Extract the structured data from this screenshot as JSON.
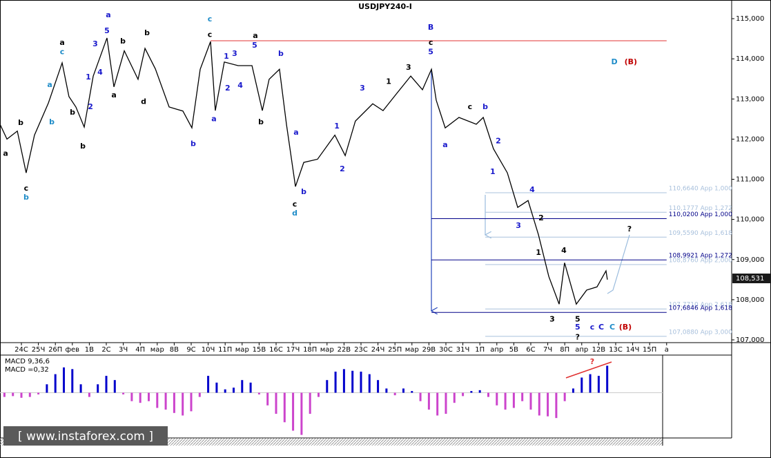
{
  "chart_data": {
    "type": "line",
    "title": "USDJPY240-I",
    "watermark": "[ www.instaforex.com ]",
    "categories": [
      "24С",
      "25Ч",
      "26П",
      "фев",
      "1В",
      "2С",
      "3Ч",
      "4П",
      "мар",
      "8В",
      "9С",
      "10Ч",
      "11П",
      "мар",
      "15В",
      "16С",
      "17Ч",
      "18П",
      "мар",
      "22В",
      "23С",
      "24Ч",
      "25П",
      "мар",
      "29В",
      "30С",
      "31Ч",
      "1П",
      "апр",
      "5В",
      "6С",
      "7Ч",
      "8П",
      "апр",
      "12В",
      "13С",
      "14Ч",
      "15П",
      "а"
    ],
    "xlim": [
      -1.26,
      41.83
    ],
    "ylim": [
      107.0,
      115.465
    ],
    "yticks": [
      {
        "value": 115,
        "label": "115,000"
      },
      {
        "value": 114,
        "label": "114,000"
      },
      {
        "value": 113,
        "label": "113,000"
      },
      {
        "value": 112,
        "label": "112,000"
      },
      {
        "value": 111,
        "label": "111,000"
      },
      {
        "value": 110,
        "label": "110,000"
      },
      {
        "value": 109,
        "label": "109,000"
      },
      {
        "value": 108,
        "label": "108,000"
      },
      {
        "value": 107,
        "label": "107,000"
      }
    ],
    "series": [
      {
        "name": "USDJPY240-I",
        "color": "#000000",
        "x": [
          -1.26,
          -0.85,
          -0.24,
          0.28,
          0.77,
          1.59,
          2.4,
          2.8,
          3.21,
          3.7,
          4.23,
          5.04,
          5.45,
          6.06,
          6.87,
          7.28,
          7.89,
          8.7,
          9.51,
          10.04,
          10.53,
          11.14,
          11.42,
          11.95,
          12.76,
          13.58,
          14.19,
          14.59,
          15.2,
          15.61,
          16.14,
          16.63,
          17.44,
          18.46,
          19.07,
          19.67,
          20.69,
          21.3,
          22.11,
          22.93,
          23.62,
          24.15,
          24.43,
          24.96,
          25.77,
          26.79,
          27.2,
          27.8,
          28.62,
          29.23,
          29.84,
          30.45,
          31.06,
          31.67,
          31.99,
          32.68,
          33.29,
          33.9,
          34.43,
          34.51
        ],
        "values": [
          112.37,
          112.0,
          112.2,
          111.16,
          112.1,
          112.9,
          113.9,
          113.06,
          112.8,
          112.3,
          113.57,
          114.52,
          113.3,
          114.2,
          113.49,
          114.26,
          113.75,
          112.8,
          112.7,
          112.28,
          113.74,
          114.43,
          112.71,
          113.92,
          113.83,
          113.83,
          112.71,
          113.49,
          113.74,
          112.37,
          110.82,
          111.42,
          111.5,
          112.1,
          111.59,
          112.45,
          112.88,
          112.71,
          113.14,
          113.57,
          113.23,
          113.74,
          112.97,
          112.28,
          112.54,
          112.37,
          112.54,
          111.76,
          111.16,
          110.3,
          110.47,
          109.62,
          108.58,
          107.89,
          108.92,
          107.89,
          108.24,
          108.32,
          108.72,
          108.5
        ]
      }
    ],
    "last_price": {
      "value": 108.531,
      "label": "108,531"
    },
    "levels": [
      {
        "value": 114.45,
        "color": "#e03030",
        "x_start": 11.14,
        "x_end": 38.0
      },
      {
        "value": 110.664,
        "label": "110,6640 App 1,000",
        "color": "#a8c0dc",
        "x_start": 27.32,
        "x_end": 38.0
      },
      {
        "value": 110.1777,
        "label": "110,1777 App 1,272",
        "color": "#a8c0dc",
        "x_start": 27.32,
        "x_end": 38.0
      },
      {
        "value": 110.02,
        "label": "110,0200 App 1,000",
        "color": "#000088",
        "x_start": 24.15,
        "x_end": 38.0
      },
      {
        "value": 109.559,
        "label": "109,5590 App 1,618",
        "color": "#a8c0dc",
        "x_start": 27.32,
        "x_end": 38.0
      },
      {
        "value": 108.9921,
        "label": "108,9921 App 1,272",
        "color": "#000088",
        "x_start": 24.15,
        "x_end": 38.0
      },
      {
        "value": 108.876,
        "label": "108,8760 App 2,000",
        "color": "#a8c0dc",
        "x_start": 27.32,
        "x_end": 38.0
      },
      {
        "value": 107.771,
        "label": "107,7710 App 2,618",
        "color": "#a8c0dc",
        "x_start": 27.32,
        "x_end": 38.0
      },
      {
        "value": 107.6846,
        "label": "107,6846 App 1,618",
        "color": "#000088",
        "x_start": 24.15,
        "x_end": 38.0
      },
      {
        "value": 107.088,
        "label": "107,0880 App 3,000",
        "color": "#a8c0dc",
        "x_start": 27.32,
        "x_end": 38.0
      }
    ],
    "annotations": [
      {
        "text": "a",
        "x": -0.93,
        "y": 111.64,
        "color": "#000000"
      },
      {
        "text": "b",
        "x": -0.04,
        "y": 112.4,
        "color": "#000000"
      },
      {
        "text": "c",
        "x": 0.28,
        "y": 110.77,
        "color": "#000000"
      },
      {
        "text": "b",
        "x": 0.28,
        "y": 110.54,
        "color": "#1e8cc8"
      },
      {
        "text": "a",
        "x": 2.4,
        "y": 114.4,
        "color": "#000000"
      },
      {
        "text": "c",
        "x": 2.4,
        "y": 114.17,
        "color": "#1e8cc8"
      },
      {
        "text": "a",
        "x": 1.67,
        "y": 113.35,
        "color": "#1e8cc8"
      },
      {
        "text": "b",
        "x": 1.79,
        "y": 112.42,
        "color": "#1e8cc8"
      },
      {
        "text": "b",
        "x": 3.01,
        "y": 112.66,
        "color": "#000000"
      },
      {
        "text": "b",
        "x": 3.62,
        "y": 111.82,
        "color": "#000000"
      },
      {
        "text": "1",
        "x": 3.94,
        "y": 113.54,
        "color": "#1a1acc"
      },
      {
        "text": "2",
        "x": 4.07,
        "y": 112.8,
        "color": "#1a1acc"
      },
      {
        "text": "3",
        "x": 4.35,
        "y": 114.36,
        "color": "#1a1acc"
      },
      {
        "text": "4",
        "x": 4.63,
        "y": 113.66,
        "color": "#1a1acc"
      },
      {
        "text": "5",
        "x": 5.04,
        "y": 114.69,
        "color": "#1a1acc"
      },
      {
        "text": "a",
        "x": 5.12,
        "y": 115.09,
        "color": "#1a1acc"
      },
      {
        "text": "a",
        "x": 5.45,
        "y": 113.09,
        "color": "#000000"
      },
      {
        "text": "b",
        "x": 5.98,
        "y": 114.43,
        "color": "#000000"
      },
      {
        "text": "b",
        "x": 7.4,
        "y": 114.64,
        "color": "#000000"
      },
      {
        "text": "d",
        "x": 7.2,
        "y": 112.93,
        "color": "#000000"
      },
      {
        "text": "b",
        "x": 10.12,
        "y": 111.88,
        "color": "#1a1acc"
      },
      {
        "text": "c",
        "x": 11.1,
        "y": 114.98,
        "color": "#1e8cc8"
      },
      {
        "text": "c",
        "x": 11.1,
        "y": 114.6,
        "color": "#000000"
      },
      {
        "text": "a",
        "x": 11.34,
        "y": 112.5,
        "color": "#1a1acc"
      },
      {
        "text": "1",
        "x": 12.07,
        "y": 114.05,
        "color": "#1a1acc"
      },
      {
        "text": "2",
        "x": 12.15,
        "y": 113.26,
        "color": "#1a1acc"
      },
      {
        "text": "3",
        "x": 12.56,
        "y": 114.12,
        "color": "#1a1acc"
      },
      {
        "text": "4",
        "x": 12.89,
        "y": 113.33,
        "color": "#1a1acc"
      },
      {
        "text": "5",
        "x": 13.74,
        "y": 114.33,
        "color": "#1a1acc"
      },
      {
        "text": "a",
        "x": 13.78,
        "y": 114.57,
        "color": "#000000"
      },
      {
        "text": "b",
        "x": 14.11,
        "y": 112.42,
        "color": "#000000"
      },
      {
        "text": "b",
        "x": 15.28,
        "y": 114.12,
        "color": "#1a1acc"
      },
      {
        "text": "c",
        "x": 16.1,
        "y": 110.37,
        "color": "#000000"
      },
      {
        "text": "d",
        "x": 16.1,
        "y": 110.15,
        "color": "#1e8cc8"
      },
      {
        "text": "b",
        "x": 16.63,
        "y": 110.68,
        "color": "#1a1acc"
      },
      {
        "text": "a",
        "x": 16.18,
        "y": 112.16,
        "color": "#1a1acc"
      },
      {
        "text": "1",
        "x": 18.58,
        "y": 112.32,
        "color": "#1a1acc"
      },
      {
        "text": "2",
        "x": 18.9,
        "y": 111.25,
        "color": "#1a1acc"
      },
      {
        "text": "3",
        "x": 20.08,
        "y": 113.26,
        "color": "#1a1acc"
      },
      {
        "text": "1",
        "x": 21.63,
        "y": 113.43,
        "color": "#000000"
      },
      {
        "text": "3",
        "x": 22.8,
        "y": 113.78,
        "color": "#000000"
      },
      {
        "text": "B",
        "x": 24.11,
        "y": 114.78,
        "color": "#1a1acc"
      },
      {
        "text": "c",
        "x": 24.11,
        "y": 114.4,
        "color": "#000000"
      },
      {
        "text": "5",
        "x": 24.11,
        "y": 114.17,
        "color": "#1a1acc"
      },
      {
        "text": "a",
        "x": 24.96,
        "y": 111.85,
        "color": "#1a1acc"
      },
      {
        "text": "c",
        "x": 26.42,
        "y": 112.8,
        "color": "#000000"
      },
      {
        "text": "b",
        "x": 27.32,
        "y": 112.8,
        "color": "#1a1acc"
      },
      {
        "text": "1",
        "x": 27.76,
        "y": 111.18,
        "color": "#1a1acc"
      },
      {
        "text": "2",
        "x": 28.09,
        "y": 111.95,
        "color": "#1a1acc"
      },
      {
        "text": "3",
        "x": 29.27,
        "y": 109.84,
        "color": "#1a1acc"
      },
      {
        "text": "4",
        "x": 30.08,
        "y": 110.73,
        "color": "#1a1acc"
      },
      {
        "text": "1",
        "x": 30.45,
        "y": 109.17,
        "color": "#000000"
      },
      {
        "text": "2",
        "x": 30.61,
        "y": 110.03,
        "color": "#000000"
      },
      {
        "text": "3",
        "x": 31.26,
        "y": 107.51,
        "color": "#000000"
      },
      {
        "text": "4",
        "x": 31.95,
        "y": 109.22,
        "color": "#000000"
      },
      {
        "text": "5",
        "x": 32.76,
        "y": 107.31,
        "color": "#1a1acc"
      },
      {
        "text": "5",
        "x": 32.76,
        "y": 107.51,
        "color": "#000000"
      },
      {
        "text": "?",
        "x": 32.76,
        "y": 107.06,
        "color": "#000000"
      },
      {
        "text": "c",
        "x": 33.62,
        "y": 107.31,
        "color": "#1a1acc"
      },
      {
        "text": "C",
        "x": 34.15,
        "y": 107.31,
        "color": "#1a1acc"
      },
      {
        "text": "C",
        "x": 34.8,
        "y": 107.31,
        "color": "#1e8cc8"
      },
      {
        "text": "(B)",
        "x": 35.57,
        "y": 107.31,
        "color": "#c00000"
      },
      {
        "text": "D",
        "x": 34.92,
        "y": 113.92,
        "color": "#1e8cc8"
      },
      {
        "text": "(B)",
        "x": 35.89,
        "y": 113.92,
        "color": "#c00000"
      },
      {
        "text": "?",
        "x": 35.81,
        "y": 109.75,
        "color": "#000000"
      }
    ],
    "macd": {
      "title": "MACD 9,36,6",
      "current_label": "MACD =0,32",
      "ylim": [
        -0.52,
        0.43
      ],
      "positive_color": "#0000cc",
      "negative_color": "#cc44cc",
      "x": [
        -1,
        -0.5,
        0,
        0.5,
        1,
        1.5,
        2,
        2.5,
        3,
        3.5,
        4,
        4.5,
        5,
        5.5,
        6,
        6.5,
        7,
        7.5,
        8,
        8.5,
        9,
        9.5,
        10,
        10.5,
        11,
        11.5,
        12,
        12.5,
        13,
        13.5,
        14,
        14.5,
        15,
        15.5,
        16,
        16.5,
        17,
        17.5,
        18,
        18.5,
        19,
        19.5,
        20,
        20.5,
        21,
        21.5,
        22,
        22.5,
        23,
        23.5,
        24,
        24.5,
        25,
        25.5,
        26,
        26.5,
        27,
        27.5,
        28,
        28.5,
        29,
        29.5,
        30,
        30.5,
        31,
        31.5,
        32,
        32.5,
        33,
        33.5,
        34,
        34.5
      ],
      "values": [
        -0.05,
        -0.04,
        -0.06,
        -0.05,
        -0.02,
        0.1,
        0.22,
        0.3,
        0.28,
        0.1,
        -0.05,
        0.1,
        0.2,
        0.15,
        -0.02,
        -0.1,
        -0.12,
        -0.1,
        -0.18,
        -0.2,
        -0.24,
        -0.27,
        -0.22,
        -0.05,
        0.2,
        0.12,
        0.04,
        0.06,
        0.15,
        0.12,
        -0.02,
        -0.15,
        -0.25,
        -0.35,
        -0.45,
        -0.5,
        -0.25,
        -0.05,
        0.15,
        0.25,
        0.28,
        0.26,
        0.25,
        0.22,
        0.15,
        0.05,
        -0.03,
        0.05,
        0.02,
        -0.1,
        -0.2,
        -0.27,
        -0.25,
        -0.12,
        -0.04,
        0.02,
        0.03,
        -0.05,
        -0.15,
        -0.2,
        -0.18,
        -0.1,
        -0.2,
        -0.27,
        -0.28,
        -0.3,
        -0.1,
        0.05,
        0.18,
        0.22,
        0.2,
        0.32
      ]
    }
  }
}
